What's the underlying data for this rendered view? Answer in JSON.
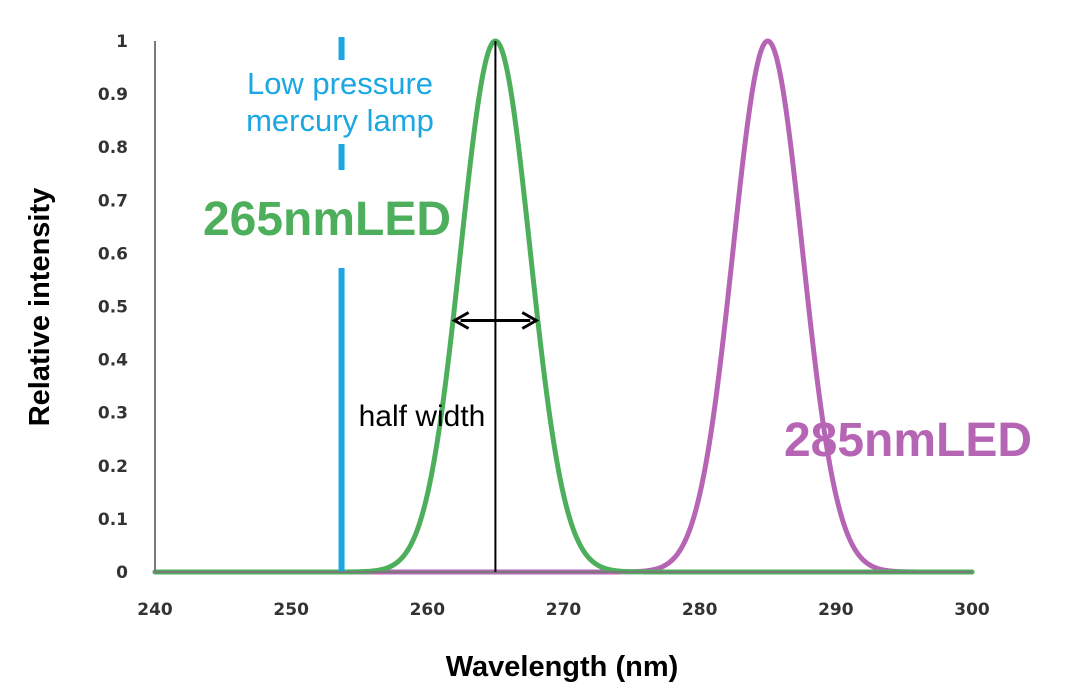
{
  "chart_data": {
    "type": "line",
    "xlabel": "Wavelength (nm)",
    "ylabel": "Relative intensity",
    "xlim": [
      240,
      300
    ],
    "ylim": [
      0,
      1
    ],
    "x_ticks": [
      "240",
      "250",
      "260",
      "270",
      "280",
      "290",
      "300"
    ],
    "y_ticks": [
      "0",
      "0.1",
      "0.2",
      "0.3",
      "0.4",
      "0.5",
      "0.6",
      "0.7",
      "0.8",
      "0.9",
      "1"
    ],
    "grid": false,
    "series": [
      {
        "name": "265nmLED",
        "peak_nm": 265,
        "half_width_nm": 6,
        "peak_intensity": 1,
        "color": "#4daf5b",
        "shape": "gaussian"
      },
      {
        "name": "285nmLED",
        "peak_nm": 285,
        "half_width_nm": 6,
        "peak_intensity": 1,
        "color": "#b565b4",
        "shape": "gaussian"
      },
      {
        "name": "Low pressure mercury lamp",
        "x": 253.7,
        "peak_intensity": 1,
        "color": "#1aa7e2",
        "shape": "line"
      }
    ],
    "annotations": {
      "lamp": [
        "Low pressure",
        "mercury lamp"
      ],
      "led265": "265nmLED",
      "led285": "285nmLED",
      "half_width": "half width"
    }
  }
}
